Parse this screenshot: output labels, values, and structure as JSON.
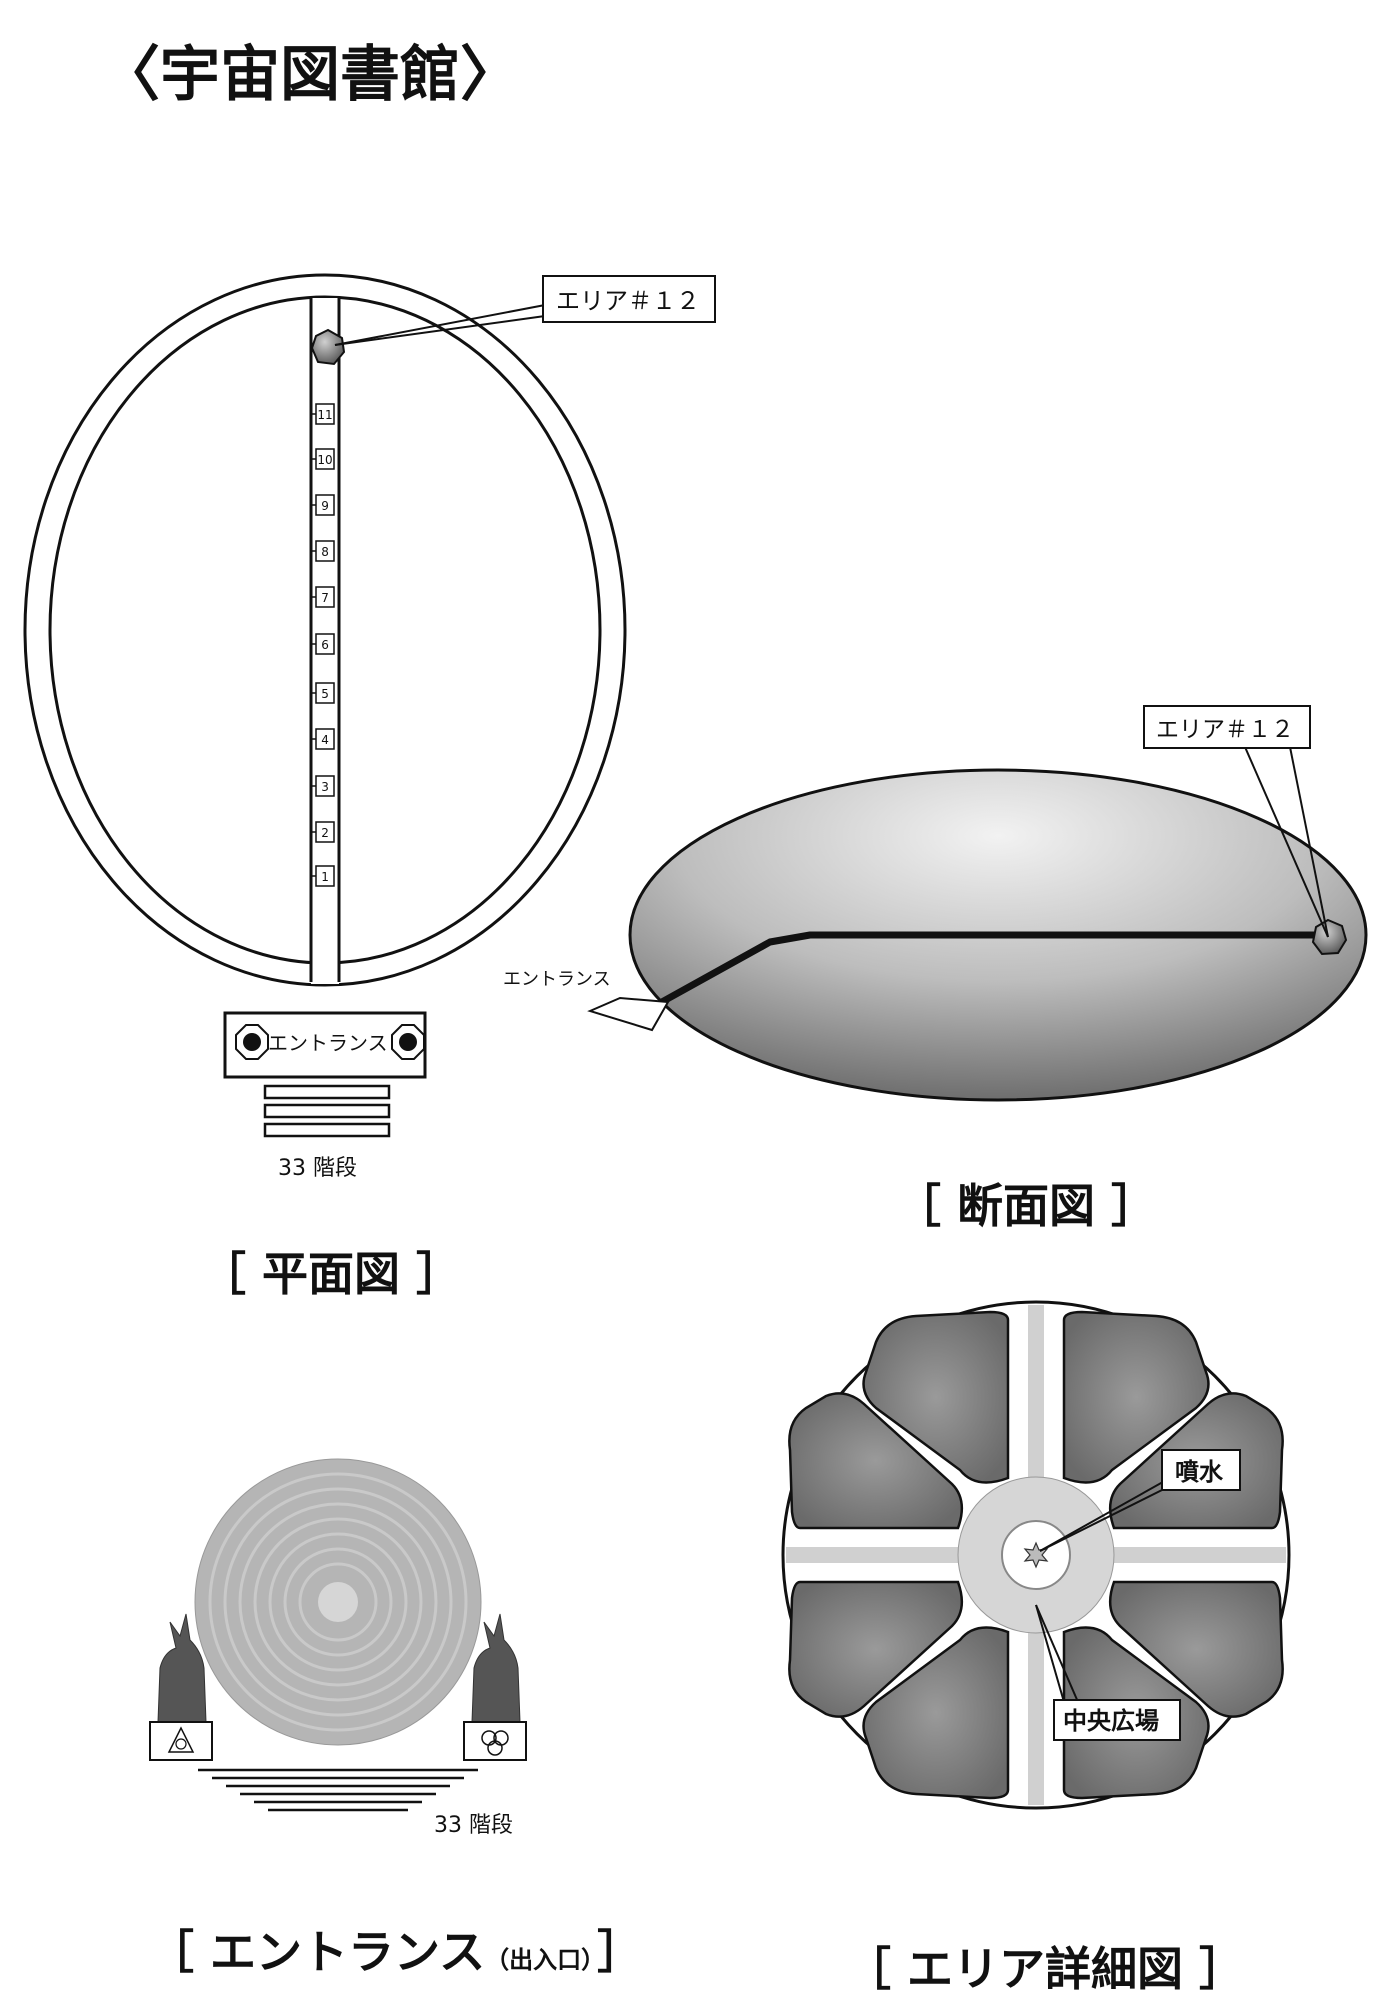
{
  "title": "〈宇宙図書館〉",
  "plan": {
    "caption": "［ 平面図 ］",
    "area_label": "エリア＃１２",
    "floors": [
      "11",
      "10",
      "9",
      "8",
      "7",
      "6",
      "5",
      "4",
      "3",
      "2",
      "1"
    ],
    "entrance_label": "エントランス",
    "stairs_label": "33 階段"
  },
  "section": {
    "caption": "［ 断面図 ］",
    "area_label": "エリア＃１２",
    "entrance_label": "エントランス"
  },
  "entrance_view": {
    "caption_main": "［ エントランス",
    "caption_sub": "（出入口）",
    "caption_end": "］",
    "stairs_label": "33 階段"
  },
  "area_detail": {
    "caption": "［ エリア詳細図 ］",
    "fountain_label": "噴水",
    "plaza_label": "中央広場"
  }
}
